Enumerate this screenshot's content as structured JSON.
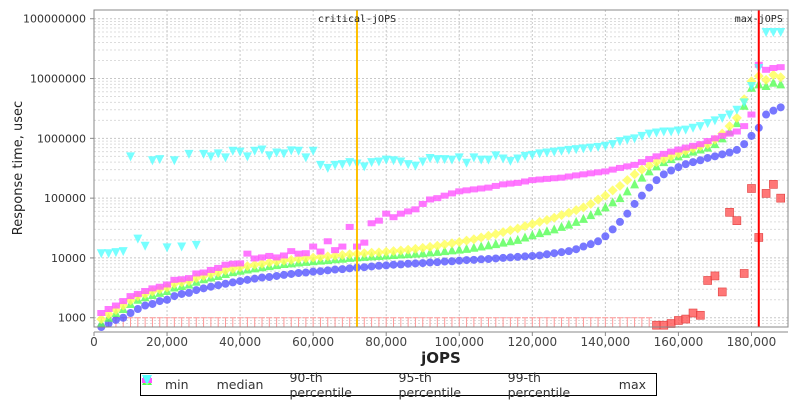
{
  "chart_data": {
    "type": "scatter",
    "title": "",
    "xlabel": "jOPS",
    "ylabel": "Response time, usec",
    "xlim": [
      0,
      190000
    ],
    "ylim": [
      700,
      140000000
    ],
    "yscale": "log",
    "grid": true,
    "legend_position": "bottom",
    "x_ticks": [
      "0",
      "20,000",
      "40,000",
      "60,000",
      "80,000",
      "100,000",
      "120,000",
      "140,000",
      "160,000",
      "180,000"
    ],
    "x_tick_values": [
      0,
      20000,
      40000,
      60000,
      80000,
      100000,
      120000,
      140000,
      160000,
      180000
    ],
    "y_ticks": [
      "1000",
      "10000",
      "100000",
      "1000000",
      "10000000",
      "100000000"
    ],
    "y_tick_values": [
      1000,
      10000,
      100000,
      1000000,
      10000000,
      100000000
    ],
    "x_start": 2000,
    "x_step": 2000,
    "vertical_markers": [
      {
        "label": "critical-jOPS",
        "x": 72000,
        "color": "#ffc000"
      },
      {
        "label": "max-jOPS",
        "x": 182000,
        "color": "#ff0000"
      }
    ],
    "series": [
      {
        "name": "min",
        "color": "#ff5555",
        "shape": "square",
        "below_range_marker": true,
        "values": [
          null,
          null,
          null,
          null,
          null,
          null,
          null,
          null,
          null,
          null,
          null,
          null,
          null,
          null,
          null,
          null,
          null,
          null,
          null,
          null,
          null,
          null,
          null,
          null,
          null,
          null,
          null,
          null,
          null,
          null,
          null,
          null,
          null,
          null,
          null,
          null,
          null,
          null,
          null,
          null,
          null,
          null,
          null,
          null,
          null,
          null,
          null,
          null,
          null,
          null,
          null,
          null,
          null,
          null,
          null,
          null,
          null,
          null,
          null,
          null,
          null,
          null,
          null,
          null,
          null,
          null,
          null,
          null,
          null,
          null,
          null,
          null,
          null,
          null,
          null,
          null,
          750,
          750,
          800,
          900,
          950,
          1200,
          1100,
          4200,
          5000,
          2700,
          58000,
          42000,
          5500,
          145000,
          22000,
          120000,
          170000,
          100000
        ]
      },
      {
        "name": "median",
        "color": "#5555ff",
        "shape": "circle",
        "values": [
          700,
          800,
          920,
          1000,
          1200,
          1400,
          1600,
          1700,
          1900,
          2000,
          2300,
          2500,
          2600,
          2900,
          3100,
          3300,
          3500,
          3700,
          3900,
          4100,
          4300,
          4500,
          4700,
          4800,
          5000,
          5200,
          5400,
          5600,
          5700,
          5900,
          6000,
          6200,
          6400,
          6500,
          6700,
          6900,
          7000,
          7200,
          7400,
          7500,
          7700,
          7800,
          8000,
          8100,
          8200,
          8400,
          8500,
          8700,
          8800,
          9000,
          9200,
          9300,
          9500,
          9600,
          9800,
          10000,
          10200,
          10400,
          10600,
          10800,
          11000,
          11500,
          12000,
          12500,
          13000,
          14000,
          15500,
          17000,
          19000,
          23000,
          30000,
          40000,
          55000,
          80000,
          110000,
          150000,
          200000,
          250000,
          290000,
          330000,
          370000,
          400000,
          430000,
          470000,
          500000,
          540000,
          580000,
          640000,
          800000,
          1100000,
          1500000,
          2500000,
          2900000,
          3300000
        ]
      },
      {
        "name": "90-th percentile",
        "color": "#55ff55",
        "shape": "triangle-up",
        "values": [
          800,
          1000,
          1200,
          1400,
          1700,
          2000,
          2200,
          2400,
          2600,
          2800,
          3200,
          3400,
          3600,
          4000,
          4400,
          4700,
          5000,
          5400,
          5800,
          6100,
          6400,
          6700,
          7000,
          7300,
          7600,
          7900,
          8100,
          8400,
          8600,
          8800,
          9000,
          9200,
          9500,
          9700,
          10000,
          10200,
          10400,
          10600,
          10800,
          11000,
          11200,
          11400,
          11600,
          11800,
          12000,
          12300,
          12600,
          13000,
          13400,
          13800,
          14200,
          14800,
          15500,
          16200,
          17000,
          18000,
          19000,
          20000,
          22000,
          24000,
          26000,
          28000,
          30000,
          33000,
          36000,
          40000,
          45000,
          52000,
          60000,
          70000,
          85000,
          100000,
          130000,
          170000,
          220000,
          280000,
          340000,
          400000,
          450000,
          500000,
          550000,
          600000,
          650000,
          700000,
          800000,
          1000000,
          1300000,
          1800000,
          3500000,
          7000000,
          8000000,
          7500000,
          8500000,
          8000000
        ]
      },
      {
        "name": "95-th percentile",
        "color": "#ffff55",
        "shape": "diamond",
        "values": [
          950,
          1150,
          1350,
          1600,
          1950,
          2300,
          2500,
          2750,
          3000,
          3200,
          3700,
          3900,
          4100,
          4600,
          5000,
          5400,
          5700,
          6200,
          6600,
          7000,
          7300,
          7700,
          8000,
          8400,
          8700,
          9000,
          9300,
          9700,
          9900,
          10100,
          10400,
          10600,
          10900,
          11200,
          11500,
          11700,
          12000,
          12200,
          12400,
          12700,
          13000,
          13300,
          13700,
          14200,
          14700,
          15300,
          16000,
          16800,
          17600,
          18500,
          19500,
          20500,
          22000,
          23500,
          25000,
          27000,
          29000,
          31000,
          34000,
          37000,
          40000,
          43000,
          47000,
          52000,
          57000,
          63000,
          70000,
          80000,
          95000,
          110000,
          135000,
          160000,
          200000,
          250000,
          300000,
          350000,
          400000,
          450000,
          500000,
          560000,
          620000,
          680000,
          740000,
          800000,
          950000,
          1200000,
          1600000,
          2200000,
          4500000,
          9000000,
          11000000,
          9500000,
          11500000,
          10500000
        ]
      },
      {
        "name": "99-th percentile",
        "color": "#ff55ff",
        "shape": "rect",
        "values": [
          1200,
          1400,
          1600,
          1900,
          2300,
          2500,
          2800,
          3100,
          3300,
          3600,
          4300,
          4400,
          4600,
          5500,
          5700,
          6300,
          6800,
          7700,
          8000,
          8100,
          11800,
          9800,
          10200,
          10800,
          10200,
          11000,
          13000,
          11800,
          12000,
          15500,
          12800,
          19000,
          13500,
          15500,
          33000,
          15500,
          18000,
          38000,
          42000,
          55000,
          48000,
          55000,
          60000,
          65000,
          80000,
          95000,
          100000,
          110000,
          120000,
          130000,
          135000,
          140000,
          145000,
          150000,
          160000,
          170000,
          175000,
          180000,
          190000,
          200000,
          205000,
          210000,
          215000,
          220000,
          230000,
          240000,
          250000,
          260000,
          270000,
          280000,
          300000,
          320000,
          340000,
          360000,
          400000,
          450000,
          500000,
          550000,
          600000,
          650000,
          700000,
          750000,
          800000,
          900000,
          1000000,
          1100000,
          1200000,
          1300000,
          1600000,
          2500000,
          17000000,
          14000000,
          15000000,
          15500000
        ]
      },
      {
        "name": "max",
        "color": "#55ffff",
        "shape": "triangle-down",
        "values": [
          12000,
          12000,
          12500,
          13000,
          500000,
          21000,
          16000,
          430000,
          450000,
          15000,
          430000,
          15500,
          550000,
          16500,
          550000,
          500000,
          560000,
          480000,
          620000,
          600000,
          500000,
          620000,
          650000,
          520000,
          580000,
          560000,
          630000,
          620000,
          480000,
          620000,
          360000,
          320000,
          360000,
          370000,
          400000,
          380000,
          340000,
          400000,
          410000,
          440000,
          430000,
          410000,
          370000,
          350000,
          410000,
          470000,
          450000,
          450000,
          440000,
          480000,
          390000,
          480000,
          440000,
          440000,
          520000,
          460000,
          420000,
          460000,
          510000,
          530000,
          560000,
          580000,
          600000,
          620000,
          640000,
          660000,
          680000,
          700000,
          720000,
          750000,
          800000,
          900000,
          950000,
          1000000,
          1100000,
          1200000,
          1250000,
          1300000,
          1300000,
          1350000,
          1400000,
          1500000,
          1600000,
          1800000,
          2000000,
          2200000,
          2500000,
          3000000,
          4000000,
          7500000,
          15000000,
          60000000,
          60000000,
          60000000
        ]
      }
    ]
  }
}
